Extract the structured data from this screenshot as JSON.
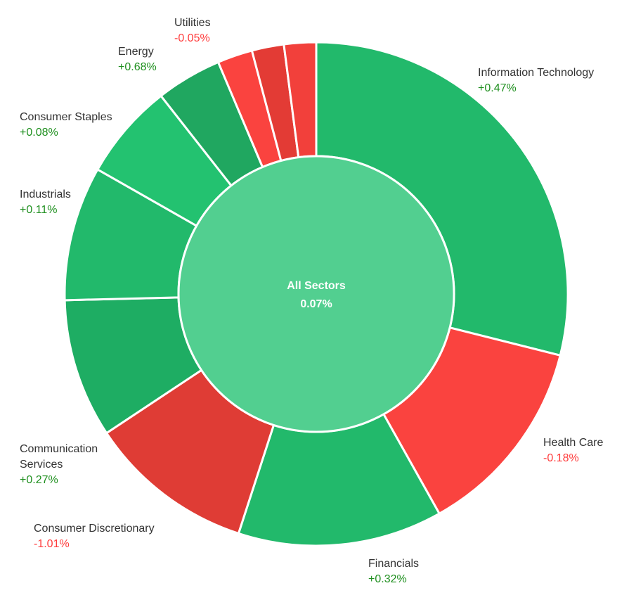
{
  "chart_data": {
    "type": "pie",
    "center": {
      "label": "All Sectors",
      "value": "0.07%"
    },
    "colors": {
      "positive_text": "#1e8f1e",
      "negative_text": "#ff3b3b",
      "center_fill": "#52cf90"
    },
    "segments": [
      {
        "name": "Information Technology",
        "change": "+0.47%",
        "weight": 29.5,
        "color": "#22b96b"
      },
      {
        "name": "Health Care",
        "change": "-0.18%",
        "weight": 13.2,
        "color": "#fa433f"
      },
      {
        "name": "Financials",
        "change": "+0.32%",
        "weight": 13.4,
        "color": "#22b96b"
      },
      {
        "name": "Consumer Discretionary",
        "change": "-1.01%",
        "weight": 10.9,
        "color": "#df3c35"
      },
      {
        "name": "Communication Services",
        "change": "+0.27%",
        "weight": 9.1,
        "color": "#1ead63"
      },
      {
        "name": "Industrials",
        "change": "+0.11%",
        "weight": 8.8,
        "color": "#22b96b"
      },
      {
        "name": "Consumer Staples",
        "change": "+0.08%",
        "weight": 6.3,
        "color": "#23c270"
      },
      {
        "name": "Energy",
        "change": "+0.68%",
        "weight": 4.3,
        "color": "#20a760"
      },
      {
        "name": "",
        "change": "",
        "weight": 2.3,
        "color": "#fa433f"
      },
      {
        "name": "",
        "change": "",
        "weight": 2.1,
        "color": "#e33b35"
      },
      {
        "name": "Utilities",
        "change": "-0.05%",
        "weight": 2.1,
        "color": "#f2403b"
      }
    ]
  }
}
